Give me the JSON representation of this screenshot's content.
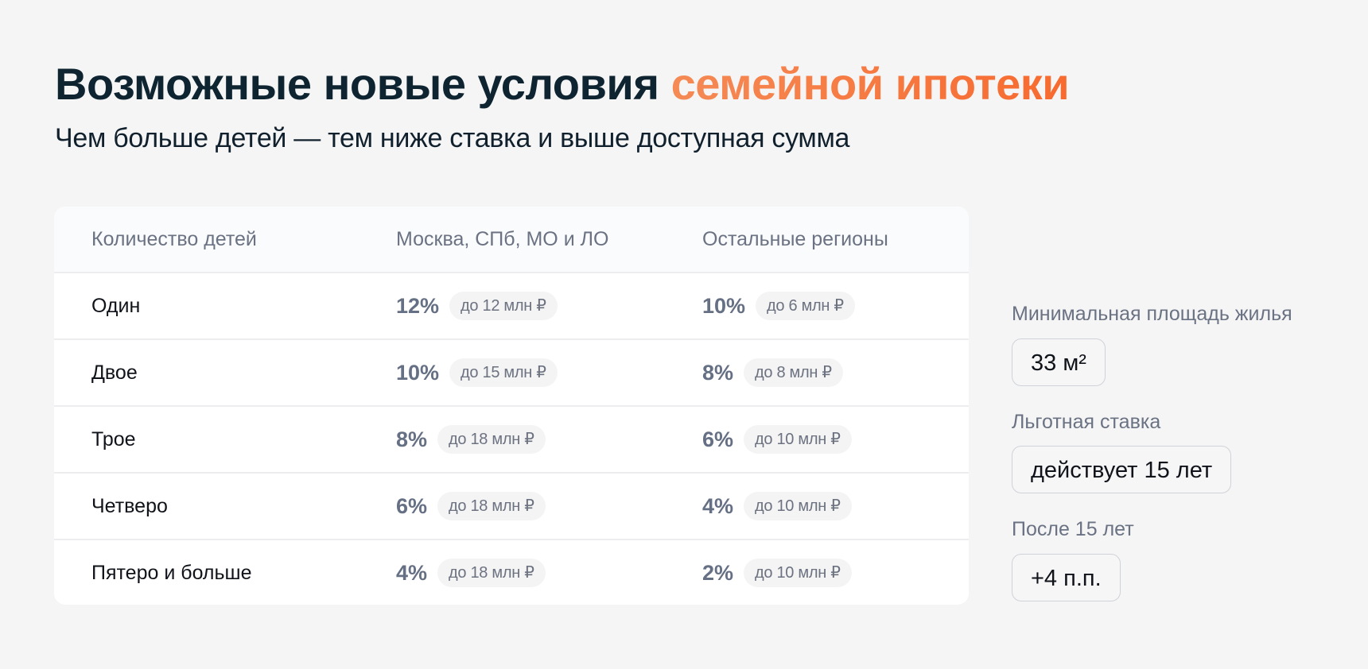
{
  "header": {
    "title_main": "Возможные новые условия ",
    "title_accent": "семейной ипотеки",
    "subtitle": "Чем больше детей — тем ниже ставка и выше доступная сумма"
  },
  "colors": {
    "accent": "#f6743c",
    "title": "#0f2431",
    "background": "#f5f5f5"
  },
  "table": {
    "headers": [
      "Количество детей",
      "Москва, СПб, МО и ЛО",
      "Остальные регионы"
    ],
    "rows": [
      {
        "children": "Один",
        "msk_rate": "12%",
        "msk_limit": "до 12 млн ₽",
        "reg_rate": "10%",
        "reg_limit": "до 6 млн ₽"
      },
      {
        "children": "Двое",
        "msk_rate": "10%",
        "msk_limit": "до 15 млн ₽",
        "reg_rate": "8%",
        "reg_limit": "до 8 млн ₽"
      },
      {
        "children": "Трое",
        "msk_rate": "8%",
        "msk_limit": "до 18 млн ₽",
        "reg_rate": "6%",
        "reg_limit": "до 10 млн ₽"
      },
      {
        "children": "Четверо",
        "msk_rate": "6%",
        "msk_limit": "до 18 млн ₽",
        "reg_rate": "4%",
        "reg_limit": "до 10 млн ₽"
      },
      {
        "children": "Пятеро и больше",
        "msk_rate": "4%",
        "msk_limit": "до 18 млн ₽",
        "reg_rate": "2%",
        "reg_limit": "до 10 млн ₽"
      }
    ]
  },
  "side": [
    {
      "label": "Минимальная площадь жилья",
      "value": "33 м²"
    },
    {
      "label": "Льготная ставка",
      "value": "действует 15 лет"
    },
    {
      "label": "После 15 лет",
      "value": "+4 п.п."
    }
  ]
}
